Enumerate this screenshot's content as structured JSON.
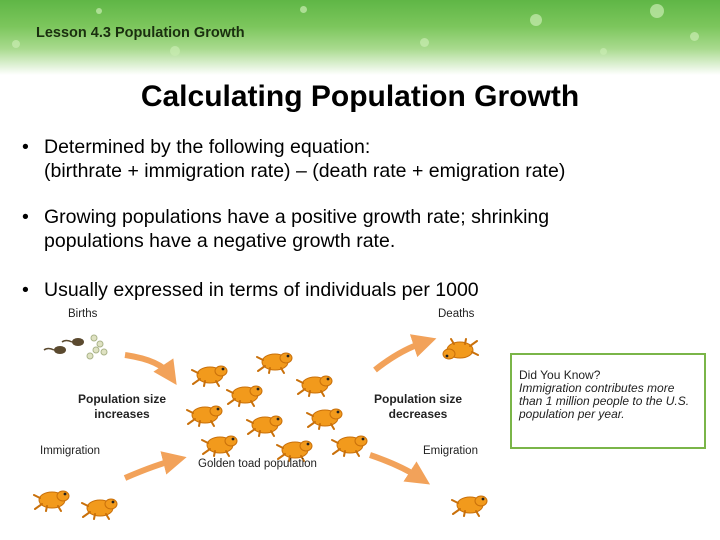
{
  "header": {
    "lesson": "Lesson 4.3 Population Growth"
  },
  "title": "Calculating Population Growth",
  "bullets": [
    {
      "line1": "Determined by the following equation:",
      "line2": "(birthrate + immigration rate) – (death rate + emigration rate)"
    },
    {
      "line1": "Growing populations have a positive growth rate; shrinking",
      "line2": "populations have a negative growth rate."
    },
    {
      "line1": "Usually expressed in terms of individuals per 1000",
      "line2": ""
    }
  ],
  "bullet_symbol": "•",
  "figure": {
    "births": "Births",
    "deaths": "Deaths",
    "increase_line1": "Population size",
    "increase_line2": "increases",
    "decrease_line1": "Population size",
    "decrease_line2": "decreases",
    "immigration": "Immigration",
    "emigration": "Emigration",
    "center": "Golden toad population"
  },
  "callout": {
    "heading": "Did You Know?",
    "body": "Immigration contributes more than 1 million people to the U.S. population per year."
  },
  "colors": {
    "toad": "#f29a1c",
    "toad_dark": "#c9700a",
    "arrow": "#f2a25a",
    "banner": "#5fb646",
    "callout_border": "#7ab548"
  }
}
